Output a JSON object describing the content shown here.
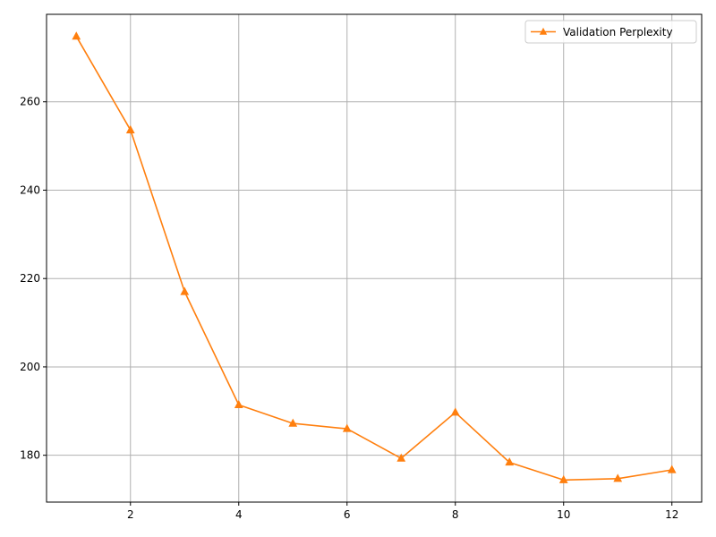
{
  "chart_data": {
    "type": "line",
    "title": "",
    "xlabel": "",
    "ylabel": "",
    "xlim": [
      0.45,
      12.55
    ],
    "ylim": [
      169.4,
      279.8
    ],
    "x_ticks": [
      2,
      4,
      6,
      8,
      10,
      12
    ],
    "y_ticks": [
      180,
      200,
      220,
      240,
      260
    ],
    "grid": true,
    "legend_position": "top-right",
    "series": [
      {
        "name": "Validation Perplexity",
        "color": "#ff7f0e",
        "marker": "triangle-up",
        "x": [
          1,
          2,
          3,
          4,
          5,
          6,
          7,
          8,
          9,
          10,
          11,
          12
        ],
        "y": [
          274.8,
          253.6,
          217.0,
          191.4,
          187.2,
          186.0,
          179.3,
          189.7,
          178.4,
          174.4,
          174.7,
          176.7
        ]
      }
    ]
  }
}
